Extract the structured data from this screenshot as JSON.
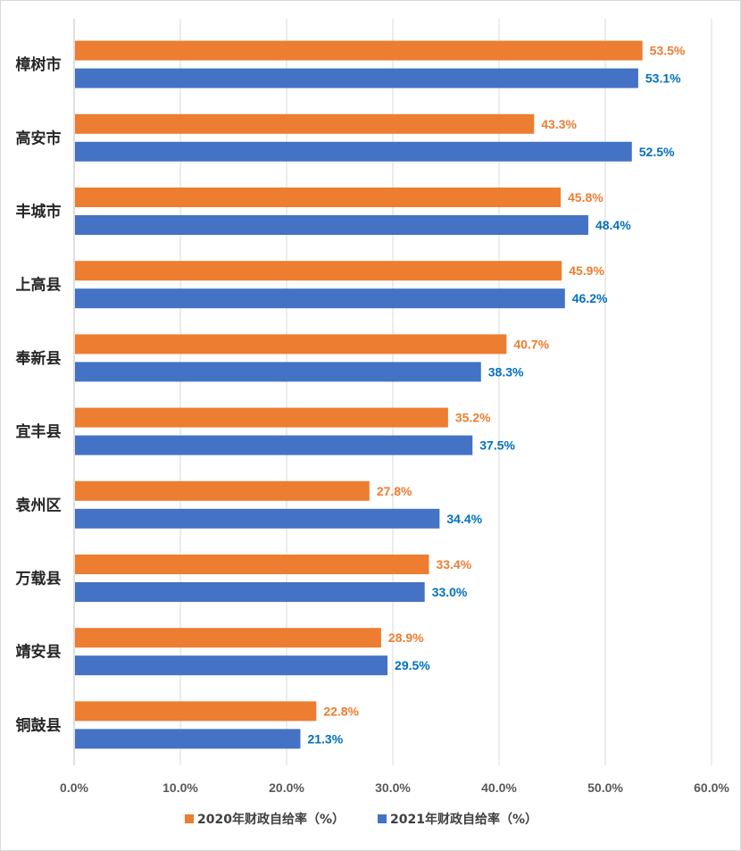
{
  "chart_data": {
    "type": "bar",
    "orientation": "horizontal",
    "categories": [
      "樟树市",
      "高安市",
      "丰城市",
      "上高县",
      "奉新县",
      "宜丰县",
      "袁州区",
      "万载县",
      "靖安县",
      "铜鼓县"
    ],
    "series": [
      {
        "name": "2020年财政自给率（%）",
        "color": "#ED7D31",
        "label_color": "#ED7D31",
        "values": [
          53.5,
          43.3,
          45.8,
          45.9,
          40.7,
          35.2,
          27.8,
          33.4,
          28.9,
          22.8
        ],
        "labels": [
          "53.5%",
          "43.3%",
          "45.8%",
          "45.9%",
          "40.7%",
          "35.2%",
          "27.8%",
          "33.4%",
          "28.9%",
          "22.8%"
        ]
      },
      {
        "name": "2021年财政自给率（%）",
        "color": "#4472C4",
        "label_color": "#0070C0",
        "values": [
          53.1,
          52.5,
          48.4,
          46.2,
          38.3,
          37.5,
          34.4,
          33.0,
          29.5,
          21.3
        ],
        "labels": [
          "53.1%",
          "52.5%",
          "48.4%",
          "46.2%",
          "38.3%",
          "37.5%",
          "34.4%",
          "33.0%",
          "29.5%",
          "21.3%"
        ]
      }
    ],
    "x_ticks": [
      "0.0%",
      "10.0%",
      "20.0%",
      "30.0%",
      "40.0%",
      "50.0%",
      "60.0%"
    ],
    "xlim": [
      0,
      60
    ],
    "grid": true,
    "legend_position": "bottom",
    "gridline_color": "#d9d9d9",
    "axis_color": "#bfbfbf"
  }
}
